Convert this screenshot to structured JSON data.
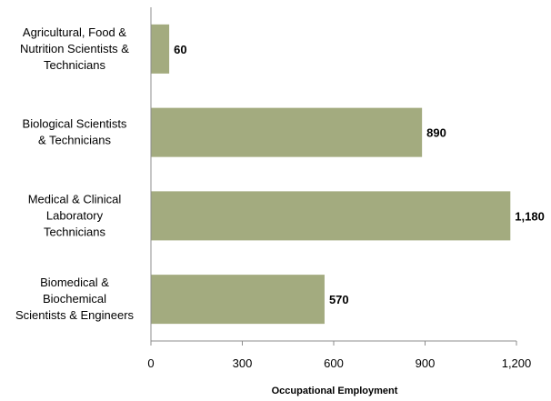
{
  "chart_data": {
    "type": "bar",
    "orientation": "horizontal",
    "categories": [
      [
        "Agricultural, Food &",
        "Nutrition Scientists &",
        "Technicians"
      ],
      [
        "Biological Scientists",
        "& Technicians"
      ],
      [
        "Medical & Clinical",
        "Laboratory",
        "Technicians"
      ],
      [
        "Biomedical &",
        "Biochemical",
        "Scientists & Engineers"
      ]
    ],
    "values": [
      60,
      890,
      1180,
      570
    ],
    "data_labels": [
      "60",
      "890",
      "1,180",
      "570"
    ],
    "xlabel": "Occupational Employment",
    "ylabel": "",
    "xlim": [
      0,
      1200
    ],
    "xticks": [
      0,
      300,
      600,
      900,
      1200
    ],
    "xtick_labels": [
      "0",
      "300",
      "600",
      "900",
      "1,200"
    ],
    "bar_color": "#a3ab7f",
    "grid": false,
    "legend": "none"
  }
}
